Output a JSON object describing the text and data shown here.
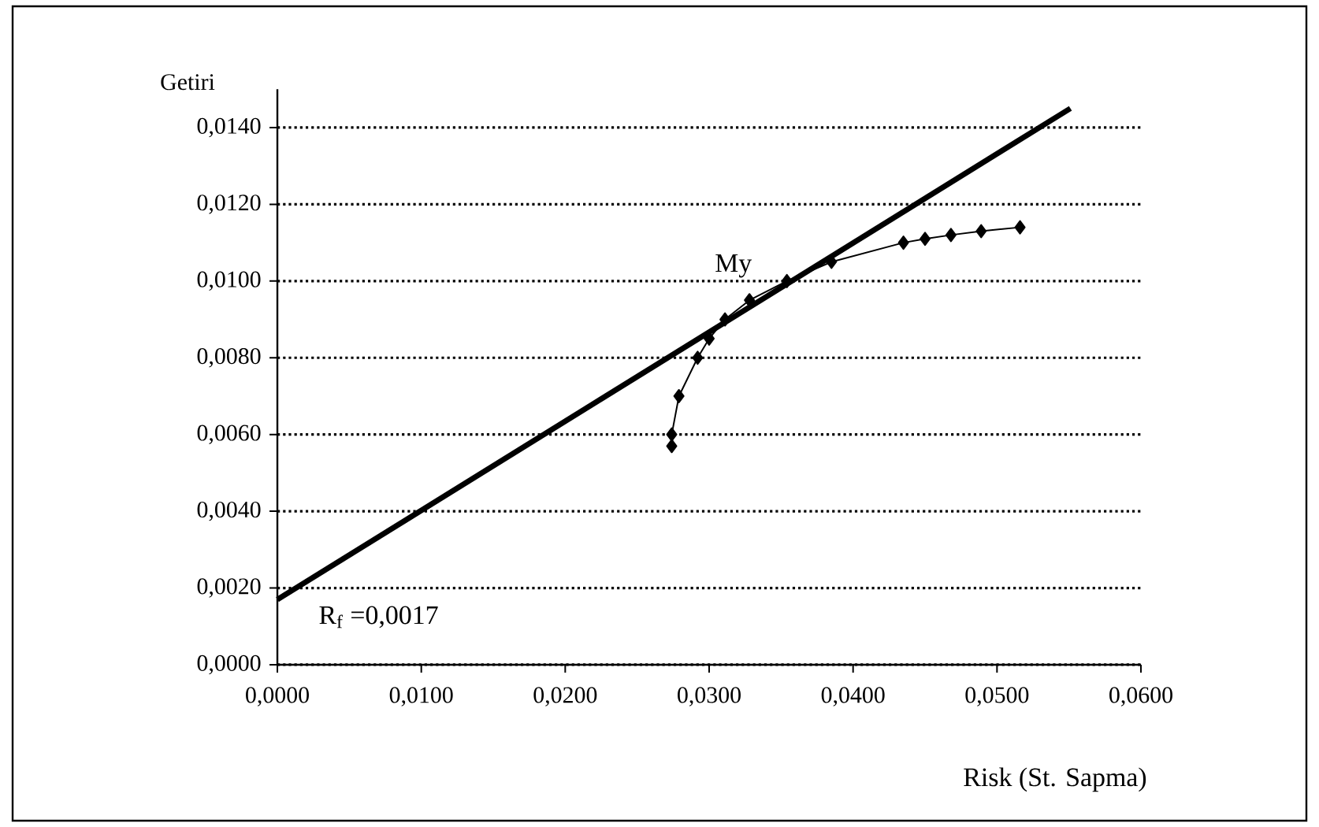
{
  "chart_data": {
    "type": "line",
    "xlabel": "Risk (St. Sapma)",
    "ylabel": "Getiri",
    "xlim": [
      0,
      0.06
    ],
    "ylim": [
      0,
      0.015
    ],
    "xticks": [
      {
        "value": 0,
        "label": "0,0000"
      },
      {
        "value": 0.01,
        "label": "0,0100"
      },
      {
        "value": 0.02,
        "label": "0,0200"
      },
      {
        "value": 0.03,
        "label": "0,0300"
      },
      {
        "value": 0.04,
        "label": "0,0400"
      },
      {
        "value": 0.05,
        "label": "0,0500"
      },
      {
        "value": 0.06,
        "label": "0,0600"
      }
    ],
    "yticks": [
      {
        "value": 0,
        "label": "0,0000"
      },
      {
        "value": 0.002,
        "label": "0,0020"
      },
      {
        "value": 0.004,
        "label": "0,0040"
      },
      {
        "value": 0.006,
        "label": "0,0060"
      },
      {
        "value": 0.008,
        "label": "0,0080"
      },
      {
        "value": 0.01,
        "label": "0,0100"
      },
      {
        "value": 0.012,
        "label": "0,0120"
      },
      {
        "value": 0.014,
        "label": "0,0140"
      }
    ],
    "grid": "y",
    "marker": "diamond",
    "line_style": "solid",
    "series": [
      {
        "color": "#000000",
        "x": [
          0.0274,
          0.0274,
          0.0279,
          0.0292,
          0.03,
          0.0311,
          0.0328,
          0.0354,
          0.0385,
          0.0435,
          0.045,
          0.0468,
          0.0489,
          0.0516
        ],
        "values": [
          0.0057,
          0.006,
          0.007,
          0.008,
          0.0085,
          0.009,
          0.0095,
          0.01,
          0.0105,
          0.011,
          0.0111,
          0.0112,
          0.0113,
          0.0114
        ]
      },
      {
        "color": "#000000",
        "marker": "none",
        "x": [
          0,
          0.0551
        ],
        "values": [
          0.0017,
          0.0145
        ]
      }
    ],
    "annotations": [
      {
        "text": "My",
        "x": 0.0354,
        "y": 0.01
      },
      {
        "text": "R$_{f}$ =0,0017",
        "x": 0,
        "y": 0.0017
      }
    ]
  }
}
